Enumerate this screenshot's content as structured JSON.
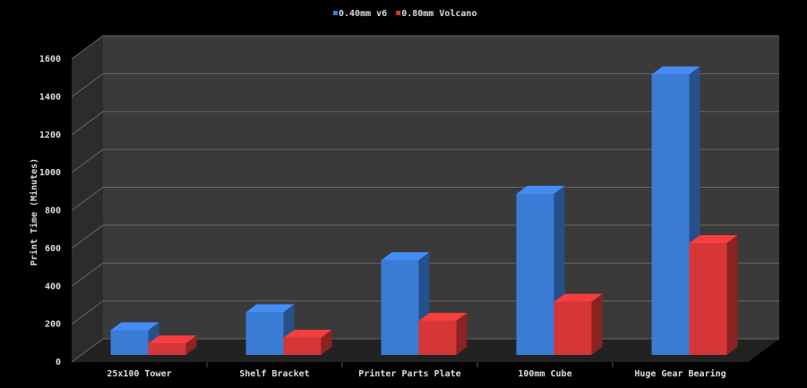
{
  "chart_data": {
    "type": "bar3d",
    "y_label": "Print Time (Minutes)",
    "categories": [
      "25x100 Tower",
      "Shelf Bracket",
      "Printer Parts Plate",
      "100mm Cube",
      "Huge Gear Bearing"
    ],
    "series": [
      {
        "name": "0.40mm v6",
        "color": "#3a7bd5",
        "values": [
          130,
          225,
          500,
          850,
          1480
        ]
      },
      {
        "name": "0.80mm Volcano",
        "color": "#d63636",
        "values": [
          60,
          90,
          180,
          280,
          590
        ]
      }
    ],
    "ylim": [
      0,
      1600
    ],
    "yticks": [
      0,
      200,
      400,
      600,
      800,
      1000,
      1200,
      1400,
      1600
    ],
    "grid": true,
    "legend": "top"
  }
}
